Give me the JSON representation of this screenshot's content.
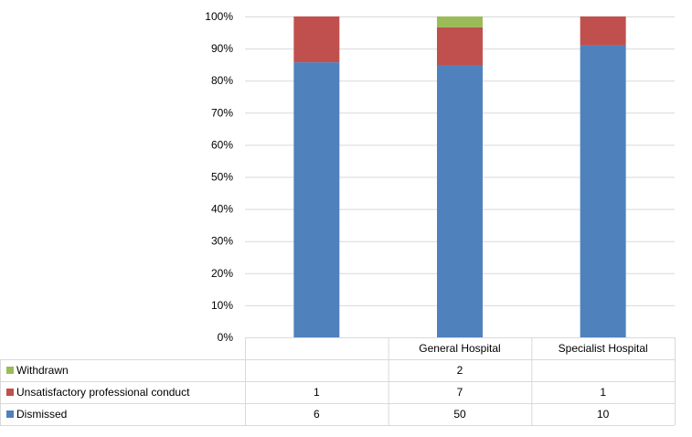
{
  "chart_data": {
    "type": "bar",
    "stacked": true,
    "percent_stacked": true,
    "categories": [
      "",
      "General Hospital",
      "Specialist Hospital"
    ],
    "series": [
      {
        "name": "Dismissed",
        "values": [
          6,
          50,
          10
        ],
        "color": "#4F81BD"
      },
      {
        "name": "Unsatisfactory professional conduct",
        "values": [
          1,
          7,
          1
        ],
        "color": "#C0504D"
      },
      {
        "name": "Withdrawn",
        "values": [
          null,
          2,
          null
        ],
        "color": "#9BBB59"
      }
    ],
    "y_ticks": [
      "0%",
      "10%",
      "20%",
      "30%",
      "40%",
      "50%",
      "60%",
      "70%",
      "80%",
      "90%",
      "100%"
    ],
    "ylim": [
      0,
      100
    ],
    "grid": true,
    "legend": "data-table-left",
    "data_table": true,
    "title": "",
    "xlabel": "",
    "ylabel": ""
  }
}
